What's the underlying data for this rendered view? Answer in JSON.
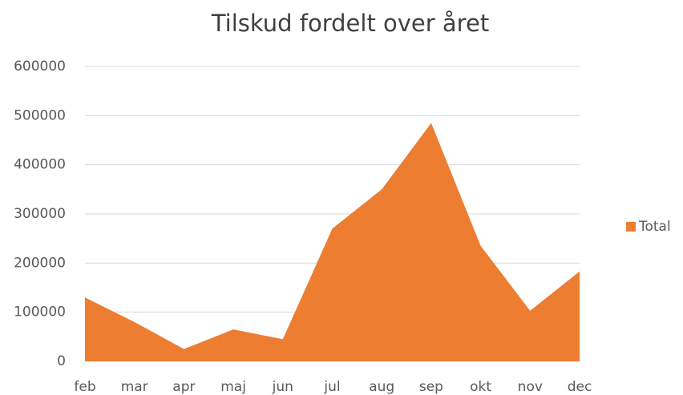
{
  "chart_data": {
    "type": "area",
    "title": "Tilskud fordelt over året",
    "categories": [
      "feb",
      "mar",
      "apr",
      "maj",
      "jun",
      "jul",
      "aug",
      "sep",
      "okt",
      "nov",
      "dec"
    ],
    "series": [
      {
        "name": "Total",
        "color": "#ed7d31",
        "values": [
          130000,
          80000,
          25000,
          65000,
          45000,
          270000,
          350000,
          485000,
          235000,
          103000,
          183000
        ]
      }
    ],
    "ylim": [
      0,
      600000
    ],
    "yticks": [
      0,
      100000,
      200000,
      300000,
      400000,
      500000,
      600000
    ],
    "grid": true,
    "legend": "right"
  }
}
